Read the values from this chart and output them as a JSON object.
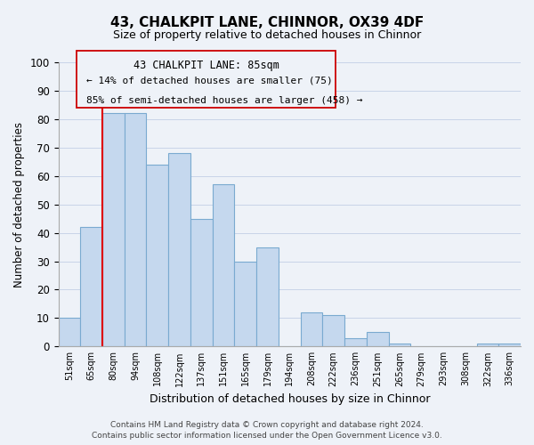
{
  "title": "43, CHALKPIT LANE, CHINNOR, OX39 4DF",
  "subtitle": "Size of property relative to detached houses in Chinnor",
  "xlabel": "Distribution of detached houses by size in Chinnor",
  "ylabel": "Number of detached properties",
  "bar_labels": [
    "51sqm",
    "65sqm",
    "80sqm",
    "94sqm",
    "108sqm",
    "122sqm",
    "137sqm",
    "151sqm",
    "165sqm",
    "179sqm",
    "194sqm",
    "208sqm",
    "222sqm",
    "236sqm",
    "251sqm",
    "265sqm",
    "279sqm",
    "293sqm",
    "308sqm",
    "322sqm",
    "336sqm"
  ],
  "bar_values": [
    10,
    42,
    82,
    82,
    64,
    68,
    45,
    57,
    30,
    35,
    0,
    12,
    11,
    3,
    5,
    1,
    0,
    0,
    0,
    1,
    1
  ],
  "bar_color": "#c5d8ee",
  "bar_edge_color": "#7aaad0",
  "vline_color": "#dd0000",
  "ylim": [
    0,
    100
  ],
  "yticks": [
    0,
    10,
    20,
    30,
    40,
    50,
    60,
    70,
    80,
    90,
    100
  ],
  "annotation_title": "43 CHALKPIT LANE: 85sqm",
  "annotation_line1": "← 14% of detached houses are smaller (75)",
  "annotation_line2": "85% of semi-detached houses are larger (458) →",
  "footer_line1": "Contains HM Land Registry data © Crown copyright and database right 2024.",
  "footer_line2": "Contains public sector information licensed under the Open Government Licence v3.0.",
  "grid_color": "#c8d4e8",
  "bg_color": "#eef2f8",
  "title_fontsize": 11,
  "subtitle_fontsize": 9
}
